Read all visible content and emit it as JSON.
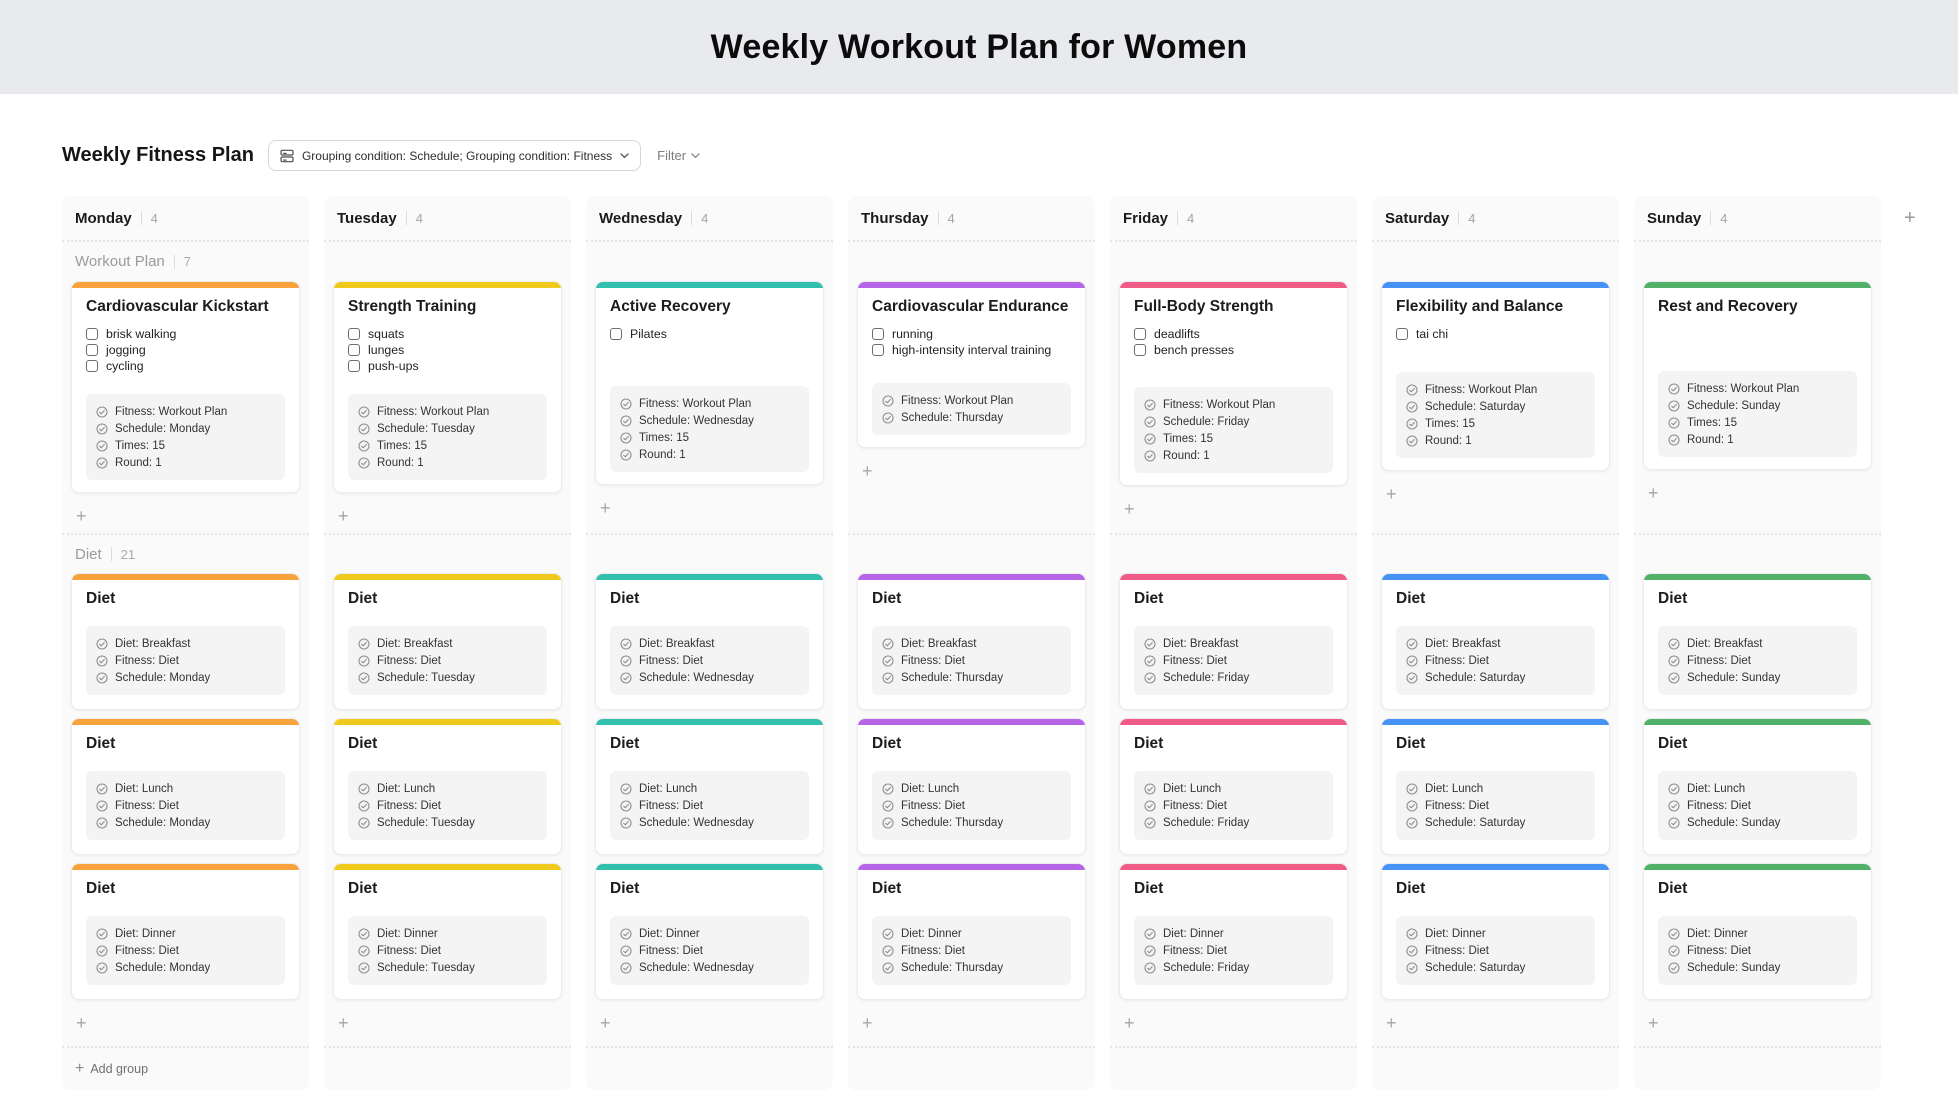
{
  "banner": {
    "title": "Weekly Workout Plan for Women"
  },
  "toolbar": {
    "view_title": "Weekly Fitness Plan",
    "grouping_button": "Grouping condition: Schedule; Grouping condition: Fitness",
    "filter_button": "Filter"
  },
  "icons": {
    "grouping_button_icon": "group-rows-icon",
    "grouping_chevron": "chevron-down-icon",
    "filter_chevron": "chevron-down-icon",
    "field_icon": "check-circle-icon",
    "add_icon": "plus-icon"
  },
  "board": {
    "groups": [
      {
        "name": "Workout Plan",
        "count": "7"
      },
      {
        "name": "Diet",
        "count": "21"
      }
    ],
    "add_group_label": "Add group",
    "columns": [
      {
        "day": "Monday",
        "count": "4",
        "accent": "#F7A23B",
        "workout_card": {
          "title": "Cardiovascular Kickstart",
          "checkboxes": [
            "brisk walking",
            "jogging",
            "cycling"
          ],
          "fields": [
            "Fitness: Workout Plan",
            "Schedule: Monday",
            "Times: 15",
            "Round: 1"
          ]
        },
        "diet_cards": [
          {
            "title": "Diet",
            "fields": [
              "Diet: Breakfast",
              "Fitness: Diet",
              "Schedule: Monday"
            ]
          },
          {
            "title": "Diet",
            "fields": [
              "Diet: Lunch",
              "Fitness: Diet",
              "Schedule: Monday"
            ]
          },
          {
            "title": "Diet",
            "fields": [
              "Diet: Dinner",
              "Fitness: Diet",
              "Schedule: Monday"
            ]
          }
        ]
      },
      {
        "day": "Tuesday",
        "count": "4",
        "accent": "#EFCA1D",
        "workout_card": {
          "title": "Strength Training",
          "checkboxes": [
            "squats",
            "lunges",
            "push-ups"
          ],
          "fields": [
            "Fitness: Workout Plan",
            "Schedule: Tuesday",
            "Times: 15",
            "Round: 1"
          ]
        },
        "diet_cards": [
          {
            "title": "Diet",
            "fields": [
              "Diet: Breakfast",
              "Fitness: Diet",
              "Schedule: Tuesday"
            ]
          },
          {
            "title": "Diet",
            "fields": [
              "Diet: Lunch",
              "Fitness: Diet",
              "Schedule: Tuesday"
            ]
          },
          {
            "title": "Diet",
            "fields": [
              "Diet: Dinner",
              "Fitness: Diet",
              "Schedule: Tuesday"
            ]
          }
        ]
      },
      {
        "day": "Wednesday",
        "count": "4",
        "accent": "#33BFAE",
        "workout_card": {
          "title": "Active Recovery",
          "checkboxes": [
            "Pilates"
          ],
          "fields": [
            "Fitness: Workout Plan",
            "Schedule: Wednesday",
            "Times: 15",
            "Round: 1"
          ]
        },
        "diet_cards": [
          {
            "title": "Diet",
            "fields": [
              "Diet: Breakfast",
              "Fitness: Diet",
              "Schedule: Wednesday"
            ]
          },
          {
            "title": "Diet",
            "fields": [
              "Diet: Lunch",
              "Fitness: Diet",
              "Schedule: Wednesday"
            ]
          },
          {
            "title": "Diet",
            "fields": [
              "Diet: Dinner",
              "Fitness: Diet",
              "Schedule: Wednesday"
            ]
          }
        ]
      },
      {
        "day": "Thursday",
        "count": "4",
        "accent": "#B565E6",
        "workout_card": {
          "title": "Cardiovascular Endurance",
          "checkboxes": [
            "running",
            "high-intensity interval training"
          ],
          "fields": [
            "Fitness: Workout Plan",
            "Schedule: Thursday"
          ]
        },
        "diet_cards": [
          {
            "title": "Diet",
            "fields": [
              "Diet: Breakfast",
              "Fitness: Diet",
              "Schedule: Thursday"
            ]
          },
          {
            "title": "Diet",
            "fields": [
              "Diet: Lunch",
              "Fitness: Diet",
              "Schedule: Thursday"
            ]
          },
          {
            "title": "Diet",
            "fields": [
              "Diet: Dinner",
              "Fitness: Diet",
              "Schedule: Thursday"
            ]
          }
        ]
      },
      {
        "day": "Friday",
        "count": "4",
        "accent": "#F15C87",
        "workout_card": {
          "title": "Full-Body Strength",
          "checkboxes": [
            "deadlifts",
            "bench presses"
          ],
          "fields": [
            "Fitness: Workout Plan",
            "Schedule: Friday",
            "Times: 15",
            "Round: 1"
          ]
        },
        "diet_cards": [
          {
            "title": "Diet",
            "fields": [
              "Diet: Breakfast",
              "Fitness: Diet",
              "Schedule: Friday"
            ]
          },
          {
            "title": "Diet",
            "fields": [
              "Diet: Lunch",
              "Fitness: Diet",
              "Schedule: Friday"
            ]
          },
          {
            "title": "Diet",
            "fields": [
              "Diet: Dinner",
              "Fitness: Diet",
              "Schedule: Friday"
            ]
          }
        ]
      },
      {
        "day": "Saturday",
        "count": "4",
        "accent": "#4593F5",
        "workout_card": {
          "title": "Flexibility and Balance",
          "checkboxes": [
            "tai chi"
          ],
          "fields": [
            "Fitness: Workout Plan",
            "Schedule: Saturday",
            "Times: 15",
            "Round: 1"
          ]
        },
        "diet_cards": [
          {
            "title": "Diet",
            "fields": [
              "Diet: Breakfast",
              "Fitness: Diet",
              "Schedule: Saturday"
            ]
          },
          {
            "title": "Diet",
            "fields": [
              "Diet: Lunch",
              "Fitness: Diet",
              "Schedule: Saturday"
            ]
          },
          {
            "title": "Diet",
            "fields": [
              "Diet: Dinner",
              "Fitness: Diet",
              "Schedule: Saturday"
            ]
          }
        ]
      },
      {
        "day": "Sunday",
        "count": "4",
        "accent": "#50B269",
        "workout_card": {
          "title": "Rest and Recovery",
          "checkboxes": [],
          "fields": [
            "Fitness: Workout Plan",
            "Schedule: Sunday",
            "Times: 15",
            "Round: 1"
          ]
        },
        "diet_cards": [
          {
            "title": "Diet",
            "fields": [
              "Diet: Breakfast",
              "Fitness: Diet",
              "Schedule: Sunday"
            ]
          },
          {
            "title": "Diet",
            "fields": [
              "Diet: Lunch",
              "Fitness: Diet",
              "Schedule: Sunday"
            ]
          },
          {
            "title": "Diet",
            "fields": [
              "Diet: Dinner",
              "Fitness: Diet",
              "Schedule: Sunday"
            ]
          }
        ]
      }
    ]
  }
}
